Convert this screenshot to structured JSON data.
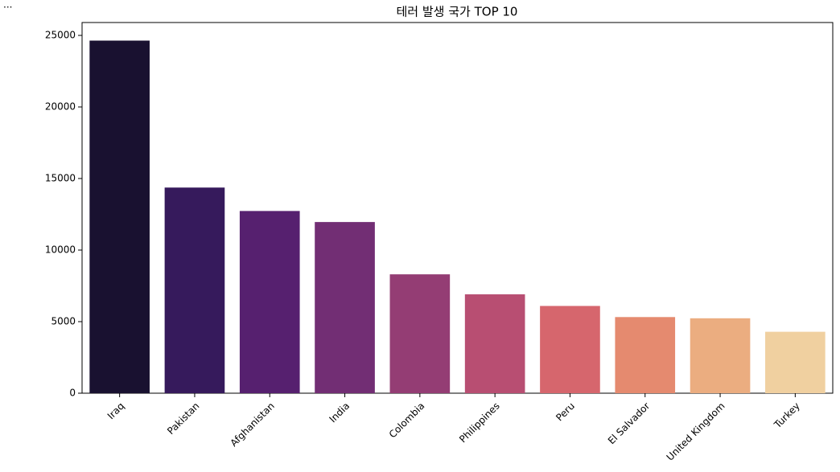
{
  "cell_marker": "...",
  "chart_data": {
    "type": "bar",
    "title": "테러 발생 국가 TOP 10",
    "categories": [
      "Iraq",
      "Pakistan",
      "Afghanistan",
      "India",
      "Colombia",
      "Philippines",
      "Peru",
      "El Salvador",
      "United Kingdom",
      "Turkey"
    ],
    "values": [
      24636,
      14368,
      12731,
      11960,
      8306,
      6908,
      6096,
      5320,
      5235,
      4292
    ],
    "colors": [
      "#191130",
      "#361a5c",
      "#56206f",
      "#722e74",
      "#943d74",
      "#b84e72",
      "#d6666d",
      "#e58a6f",
      "#ebad80",
      "#f0d0a0"
    ],
    "ylim": [
      0,
      25900
    ],
    "yticks": [
      0,
      5000,
      10000,
      15000,
      20000,
      25000
    ],
    "grid": false
  }
}
